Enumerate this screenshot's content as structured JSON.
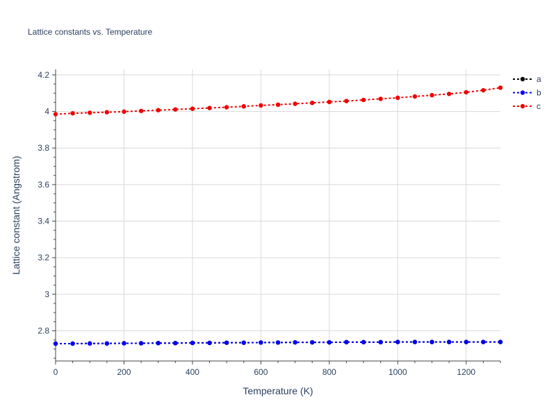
{
  "chart_data": {
    "type": "line",
    "title": "Lattice constants vs. Temperature",
    "xlabel": "Temperature (K)",
    "ylabel": "Lattice constant (Angstrom)",
    "xlim": [
      0,
      1300
    ],
    "ylim": [
      2.635,
      4.23
    ],
    "x_ticks": [
      0,
      200,
      400,
      600,
      800,
      1000,
      1200
    ],
    "x_tick_labels": [
      "0",
      "200",
      "400",
      "600",
      "800",
      "1000",
      "1200"
    ],
    "y_ticks": [
      2.8,
      3.0,
      3.2,
      3.4,
      3.6,
      3.8,
      4.0,
      4.2
    ],
    "y_tick_labels": [
      "2.8",
      "3",
      "3.2",
      "3.4",
      "3.6",
      "3.8",
      "4",
      "4.2"
    ],
    "grid": true,
    "legend_position": "top-right",
    "x": [
      0,
      50,
      100,
      150,
      200,
      250,
      300,
      350,
      400,
      450,
      500,
      550,
      600,
      650,
      700,
      750,
      800,
      850,
      900,
      950,
      1000,
      1050,
      1100,
      1150,
      1200,
      1250,
      1300
    ],
    "series": [
      {
        "name": "a",
        "color": "#000000",
        "values": [
          2.73,
          2.73,
          2.731,
          2.731,
          2.732,
          2.732,
          2.733,
          2.733,
          2.734,
          2.734,
          2.735,
          2.735,
          2.736,
          2.736,
          2.737,
          2.737,
          2.737,
          2.738,
          2.738,
          2.738,
          2.739,
          2.739,
          2.739,
          2.739,
          2.739,
          2.739,
          2.739
        ]
      },
      {
        "name": "b",
        "color": "#0000ee",
        "values": [
          2.73,
          2.73,
          2.731,
          2.731,
          2.732,
          2.732,
          2.733,
          2.733,
          2.734,
          2.734,
          2.735,
          2.735,
          2.736,
          2.736,
          2.737,
          2.737,
          2.737,
          2.738,
          2.738,
          2.738,
          2.739,
          2.739,
          2.739,
          2.739,
          2.739,
          2.739,
          2.739
        ]
      },
      {
        "name": "c",
        "color": "#ee0000",
        "values": [
          3.985,
          3.99,
          3.993,
          3.996,
          3.999,
          4.003,
          4.007,
          4.011,
          4.015,
          4.019,
          4.023,
          4.028,
          4.033,
          4.037,
          4.042,
          4.047,
          4.052,
          4.057,
          4.063,
          4.069,
          4.075,
          4.082,
          4.089,
          4.096,
          4.105,
          4.116,
          4.13
        ]
      }
    ]
  }
}
